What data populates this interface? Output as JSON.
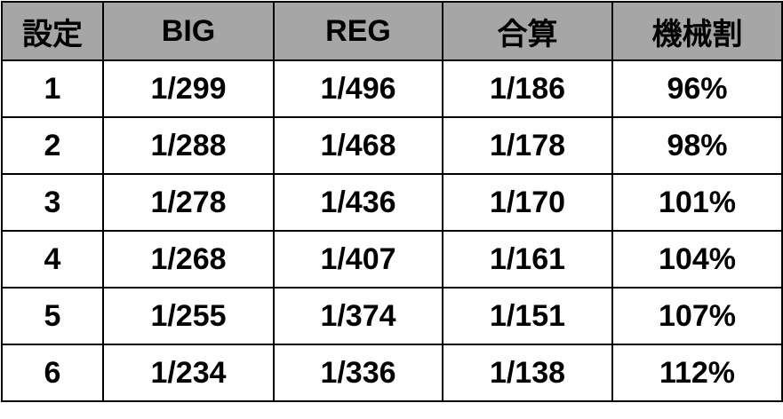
{
  "table": {
    "header": [
      "設定",
      "BIG",
      "REG",
      "合算",
      "機械割"
    ],
    "rows": [
      [
        "1",
        "1/299",
        "1/496",
        "1/186",
        "96%"
      ],
      [
        "2",
        "1/288",
        "1/468",
        "1/178",
        "98%"
      ],
      [
        "3",
        "1/278",
        "1/436",
        "1/170",
        "101%"
      ],
      [
        "4",
        "1/268",
        "1/407",
        "1/161",
        "104%"
      ],
      [
        "5",
        "1/255",
        "1/374",
        "1/151",
        "107%"
      ],
      [
        "6",
        "1/234",
        "1/336",
        "1/138",
        "112%"
      ]
    ]
  }
}
